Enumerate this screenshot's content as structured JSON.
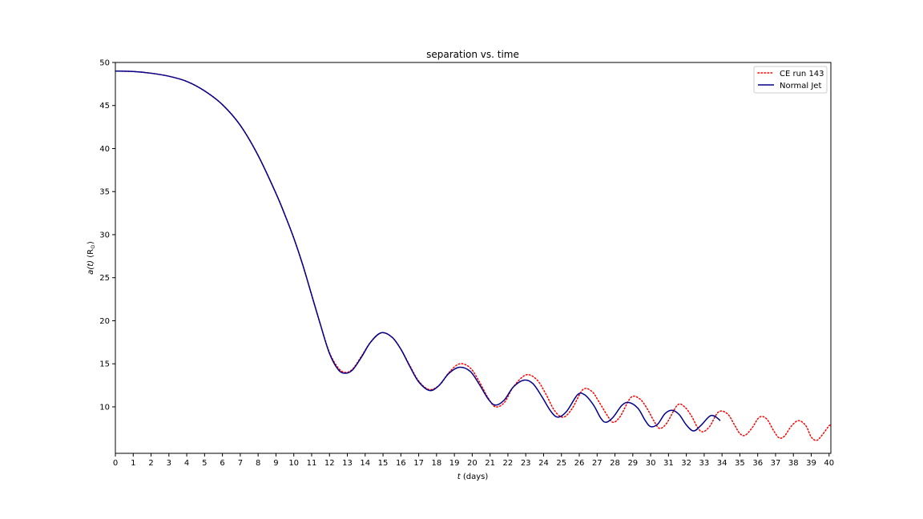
{
  "chart_data": {
    "type": "line",
    "title": "separation vs. time",
    "xlabel_var": "t",
    "xlabel_unit": " (days)",
    "ylabel_var": "a(t)",
    "ylabel_unit": " (R",
    "ylabel_sub": "⊙",
    "ylabel_close": ")",
    "xlim": [
      0,
      40.1
    ],
    "ylim": [
      4.6,
      50
    ],
    "xticks": [
      0,
      1,
      2,
      3,
      4,
      5,
      6,
      7,
      8,
      9,
      10,
      11,
      12,
      13,
      14,
      15,
      16,
      17,
      18,
      19,
      20,
      21,
      22,
      23,
      24,
      25,
      26,
      27,
      28,
      29,
      30,
      31,
      32,
      33,
      34,
      35,
      36,
      37,
      38,
      39,
      40
    ],
    "yticks": [
      10,
      15,
      20,
      25,
      30,
      35,
      40,
      45,
      50
    ],
    "legend_position": "upper-right",
    "series": [
      {
        "name": "CE run 143",
        "color": "#ff0000",
        "style": "dotted",
        "points": [
          [
            0,
            49
          ],
          [
            1,
            48.95
          ],
          [
            2,
            48.75
          ],
          [
            3,
            48.4
          ],
          [
            4,
            47.8
          ],
          [
            5,
            46.7
          ],
          [
            6,
            45.1
          ],
          [
            7,
            42.7
          ],
          [
            8,
            39.2
          ],
          [
            9,
            34.8
          ],
          [
            9.5,
            32.3
          ],
          [
            10,
            29.6
          ],
          [
            10.5,
            26.5
          ],
          [
            11,
            23.0
          ],
          [
            11.5,
            19.5
          ],
          [
            12,
            16.3
          ],
          [
            12.5,
            14.5
          ],
          [
            12.9,
            14.0
          ],
          [
            13.3,
            14.4
          ],
          [
            13.8,
            15.9
          ],
          [
            14.3,
            17.5
          ],
          [
            14.9,
            18.6
          ],
          [
            15.5,
            18.1
          ],
          [
            16.0,
            16.7
          ],
          [
            16.5,
            14.8
          ],
          [
            17.0,
            13.0
          ],
          [
            17.6,
            12.0
          ],
          [
            18.2,
            12.6
          ],
          [
            18.7,
            14.0
          ],
          [
            19.3,
            15.0
          ],
          [
            19.9,
            14.5
          ],
          [
            20.4,
            12.9
          ],
          [
            20.9,
            11.0
          ],
          [
            21.3,
            10.0
          ],
          [
            21.8,
            10.5
          ],
          [
            22.3,
            12.3
          ],
          [
            23.0,
            13.7
          ],
          [
            23.6,
            13.2
          ],
          [
            24.1,
            11.6
          ],
          [
            24.6,
            9.6
          ],
          [
            25.1,
            8.8
          ],
          [
            25.6,
            9.8
          ],
          [
            26.2,
            12.0
          ],
          [
            26.7,
            11.8
          ],
          [
            27.1,
            10.6
          ],
          [
            27.6,
            8.9
          ],
          [
            27.9,
            8.2
          ],
          [
            28.3,
            8.9
          ],
          [
            28.9,
            11.1
          ],
          [
            29.4,
            10.9
          ],
          [
            29.8,
            9.8
          ],
          [
            30.2,
            8.3
          ],
          [
            30.5,
            7.5
          ],
          [
            30.9,
            8.1
          ],
          [
            31.5,
            10.2
          ],
          [
            31.9,
            10.0
          ],
          [
            32.3,
            8.9
          ],
          [
            32.6,
            7.7
          ],
          [
            32.9,
            7.1
          ],
          [
            33.3,
            7.7
          ],
          [
            33.8,
            9.4
          ],
          [
            34.3,
            9.2
          ],
          [
            34.7,
            7.9
          ],
          [
            35.0,
            6.9
          ],
          [
            35.3,
            6.7
          ],
          [
            35.7,
            7.6
          ],
          [
            36.1,
            8.8
          ],
          [
            36.5,
            8.6
          ],
          [
            36.9,
            7.2
          ],
          [
            37.2,
            6.4
          ],
          [
            37.5,
            6.6
          ],
          [
            37.9,
            7.8
          ],
          [
            38.3,
            8.4
          ],
          [
            38.7,
            7.8
          ],
          [
            39.0,
            6.5
          ],
          [
            39.3,
            6.1
          ],
          [
            39.6,
            6.7
          ],
          [
            40.0,
            7.8
          ],
          [
            40.1,
            7.8
          ]
        ]
      },
      {
        "name": "Normal Jet",
        "color": "#00008b",
        "style": "solid",
        "points": [
          [
            0,
            49
          ],
          [
            1,
            48.95
          ],
          [
            2,
            48.75
          ],
          [
            3,
            48.4
          ],
          [
            4,
            47.8
          ],
          [
            5,
            46.7
          ],
          [
            6,
            45.1
          ],
          [
            7,
            42.7
          ],
          [
            8,
            39.2
          ],
          [
            9,
            34.8
          ],
          [
            9.5,
            32.3
          ],
          [
            10,
            29.6
          ],
          [
            10.5,
            26.5
          ],
          [
            11,
            23.0
          ],
          [
            11.5,
            19.5
          ],
          [
            12,
            16.2
          ],
          [
            12.5,
            14.3
          ],
          [
            12.9,
            13.9
          ],
          [
            13.3,
            14.3
          ],
          [
            13.8,
            15.8
          ],
          [
            14.3,
            17.5
          ],
          [
            14.9,
            18.6
          ],
          [
            15.5,
            18.1
          ],
          [
            16.0,
            16.7
          ],
          [
            16.5,
            14.7
          ],
          [
            17.0,
            12.9
          ],
          [
            17.6,
            11.9
          ],
          [
            18.1,
            12.4
          ],
          [
            18.7,
            13.9
          ],
          [
            19.3,
            14.6
          ],
          [
            19.9,
            14.1
          ],
          [
            20.4,
            12.6
          ],
          [
            20.9,
            10.9
          ],
          [
            21.3,
            10.2
          ],
          [
            21.8,
            10.8
          ],
          [
            22.3,
            12.3
          ],
          [
            22.9,
            13.1
          ],
          [
            23.4,
            12.7
          ],
          [
            23.9,
            11.2
          ],
          [
            24.4,
            9.5
          ],
          [
            24.8,
            8.8
          ],
          [
            25.3,
            9.5
          ],
          [
            25.9,
            11.4
          ],
          [
            26.3,
            11.4
          ],
          [
            26.8,
            10.2
          ],
          [
            27.2,
            8.7
          ],
          [
            27.5,
            8.2
          ],
          [
            27.9,
            8.8
          ],
          [
            28.4,
            10.2
          ],
          [
            28.8,
            10.5
          ],
          [
            29.3,
            9.8
          ],
          [
            29.7,
            8.4
          ],
          [
            30.0,
            7.7
          ],
          [
            30.4,
            8.0
          ],
          [
            30.8,
            9.2
          ],
          [
            31.2,
            9.6
          ],
          [
            31.6,
            9.1
          ],
          [
            32.0,
            7.9
          ],
          [
            32.4,
            7.2
          ],
          [
            32.8,
            7.8
          ],
          [
            33.3,
            8.9
          ],
          [
            33.6,
            8.9
          ],
          [
            33.9,
            8.4
          ]
        ]
      }
    ]
  }
}
